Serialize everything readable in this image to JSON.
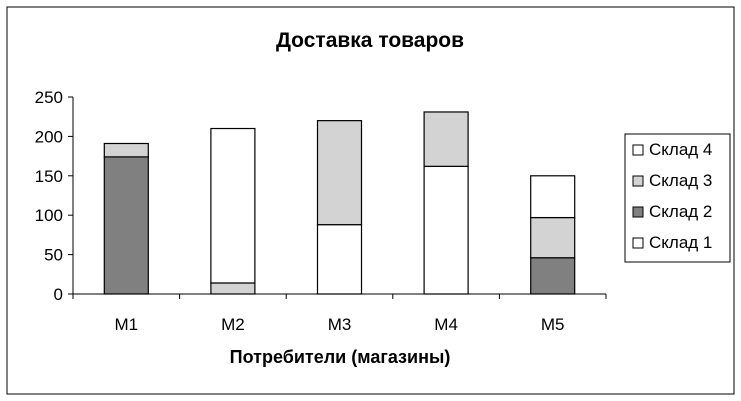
{
  "chart_data": {
    "type": "bar",
    "stacked": true,
    "title": "Доставка товаров",
    "xlabel": "Потребители (магазины)",
    "ylabel": "",
    "categories": [
      "M1",
      "M2",
      "M3",
      "M4",
      "M5"
    ],
    "ylim": [
      0,
      250
    ],
    "yticks": [
      "0",
      "50",
      "100",
      "150",
      "200",
      "250"
    ],
    "grid": false,
    "legend_position": "right",
    "series": [
      {
        "name": "Склад 1",
        "color": "#ffffff",
        "values": [
          0,
          0,
          88,
          162,
          0
        ]
      },
      {
        "name": "Склад 2",
        "color": "#808080",
        "values": [
          174,
          0,
          0,
          0,
          46
        ]
      },
      {
        "name": "Склад 3",
        "color": "#d3d3d3",
        "values": [
          17,
          14,
          132,
          69,
          51
        ]
      },
      {
        "name": "Склад 4",
        "color": "#ffffff",
        "values": [
          0,
          196,
          0,
          0,
          53
        ]
      }
    ]
  }
}
